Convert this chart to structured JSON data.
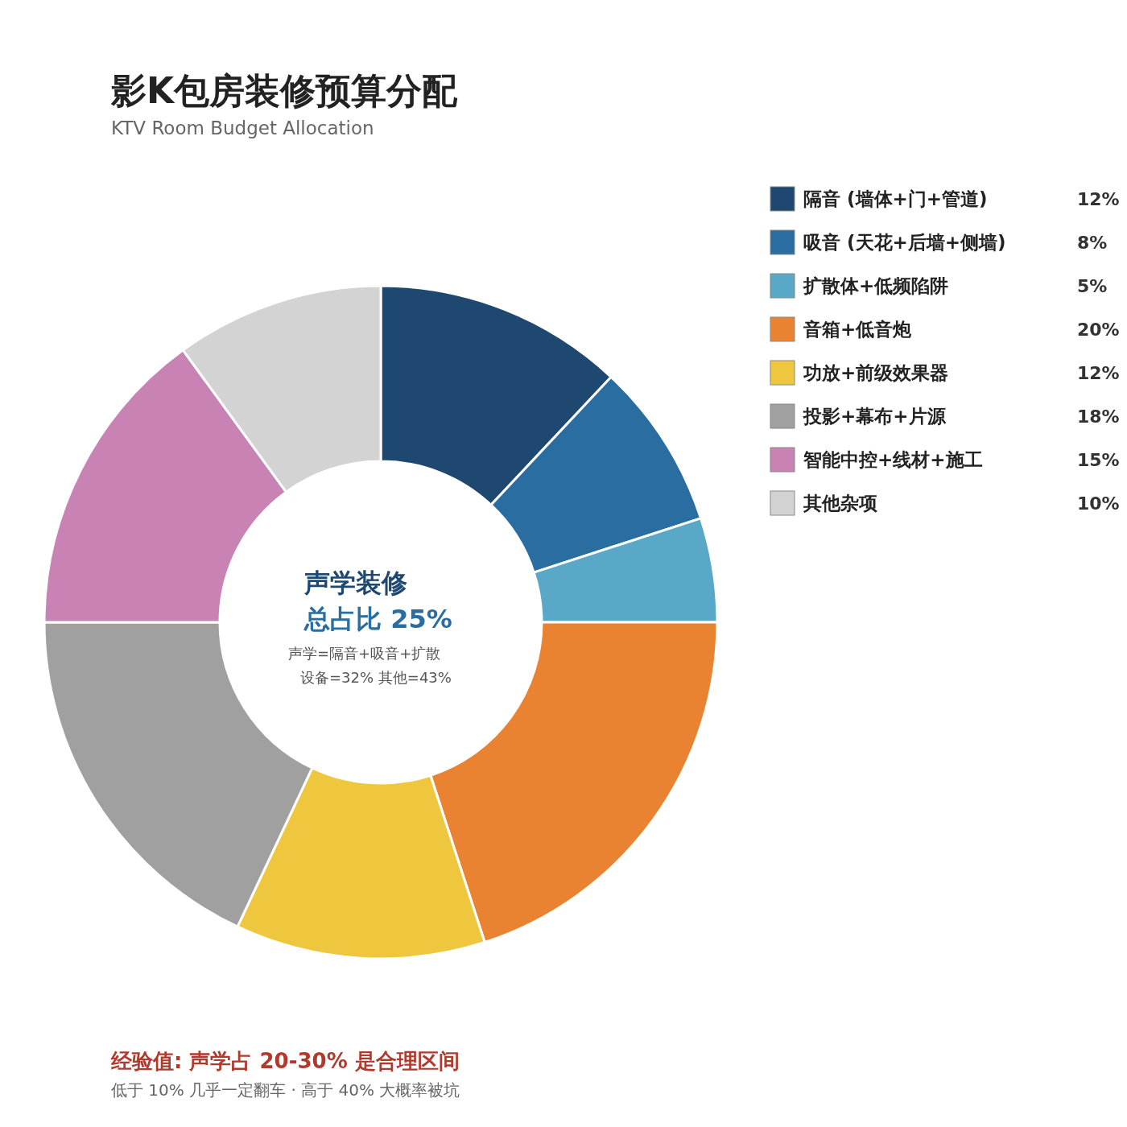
{
  "chart_data": {
    "type": "donut",
    "title": "影K包房装修预算分配",
    "subtitle": "KTV Room Budget Allocation",
    "categories": [
      "隔音 (墙体+门+管道)",
      "吸音 (天花+后墙+侧墙)",
      "扩散体+低频陷阱",
      "音箱+低音炮",
      "功放+前级效果器",
      "投影+幕布+片源",
      "智能中控+线材+施工",
      "其他杂项"
    ],
    "values": [
      12,
      8,
      5,
      20,
      12,
      18,
      15,
      10
    ],
    "colors": [
      "#1f4870",
      "#2a6da0",
      "#5aa8c8",
      "#e98332",
      "#eec73e",
      "#a0a0a0",
      "#c882b4",
      "#d3d3d3"
    ],
    "legend": "top right",
    "value_labels": [
      "12%",
      "8%",
      "5%",
      "20%",
      "12%",
      "18%",
      "15%",
      "10%"
    ],
    "annotations": [
      "声学装修",
      "总占比 25%",
      "声学=隔音+吸音+扩散",
      "设备=32% 其他=43%",
      "经验值: 声学占 20-30% 是合理区间",
      "低于 10% 几乎一定翻车 · 高于 40% 大概率被坑"
    ]
  }
}
